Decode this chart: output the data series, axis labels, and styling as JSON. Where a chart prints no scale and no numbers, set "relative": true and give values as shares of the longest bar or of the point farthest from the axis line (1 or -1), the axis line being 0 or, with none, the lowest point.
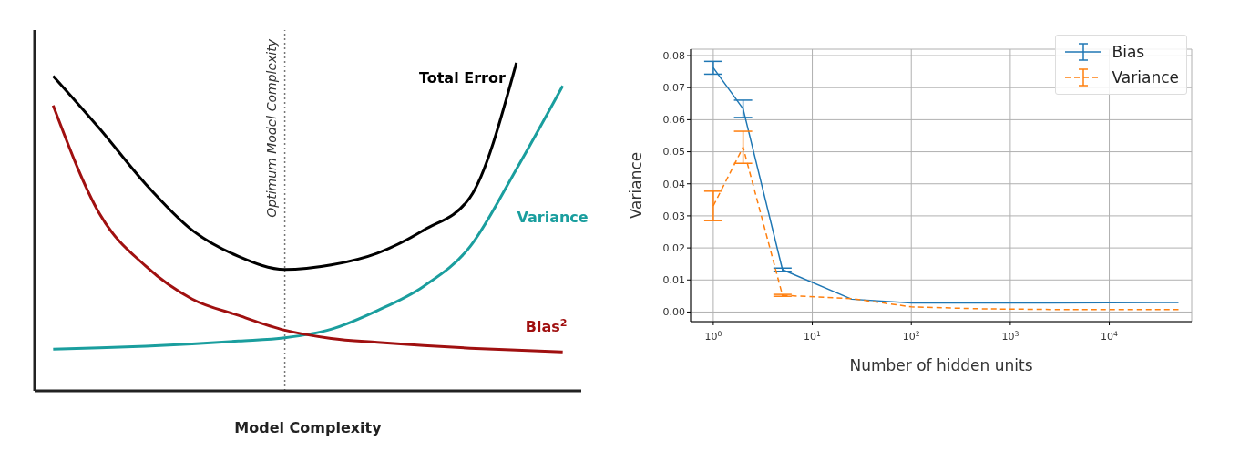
{
  "chart_data": [
    {
      "type": "line",
      "relative": true,
      "xlabel": "Model Complexity",
      "categories": [
        null,
        null,
        null,
        null,
        null,
        null,
        null,
        null,
        null,
        null,
        null,
        null
      ],
      "marker": "none",
      "series": [
        {
          "name": "Total Error",
          "color": "#000000",
          "values": [
            0.96,
            0.8,
            0.63,
            0.49,
            0.41,
            0.37,
            0.384,
            0.42,
            0.49,
            0.59,
            1.0,
            null
          ]
        },
        {
          "name": "Variance",
          "color": "#1a9e9e",
          "values": [
            0.127,
            0.131,
            0.136,
            0.143,
            0.152,
            0.162,
            0.188,
            0.245,
            0.319,
            0.44,
            0.676,
            0.93
          ]
        },
        {
          "name": "Bias$^{2}$",
          "color": "#a01010",
          "values": [
            0.87,
            0.54,
            0.38,
            0.28,
            0.23,
            0.185,
            0.16,
            0.148,
            0.138,
            0.13,
            0.124,
            0.119
          ]
        }
      ],
      "annotations": [
        "Optimum Model Complexity"
      ]
    },
    {
      "type": "line",
      "xlabel": "Number of hidden units",
      "ylabel": "Variance",
      "log": "x",
      "xlim": [
        0.59,
        68000
      ],
      "xticks": [
        {
          "value": 1,
          "label": "10$^{0}$"
        },
        {
          "value": 10,
          "label": "10$^{1}$"
        },
        {
          "value": 100,
          "label": "10$^{2}$"
        },
        {
          "value": 1000,
          "label": "10$^{3}$"
        },
        {
          "value": 10000,
          "label": "10$^{4}$"
        }
      ],
      "ylim": [
        -0.003,
        0.082
      ],
      "yticks": [
        {
          "value": 0,
          "label": "0.00"
        },
        {
          "value": 0.01,
          "label": "0.01"
        },
        {
          "value": 0.02,
          "label": "0.02"
        },
        {
          "value": 0.03,
          "label": "0.03"
        },
        {
          "value": 0.04,
          "label": "0.04"
        },
        {
          "value": 0.05,
          "label": "0.05"
        },
        {
          "value": 0.06,
          "label": "0.06"
        },
        {
          "value": 0.07,
          "label": "0.07"
        },
        {
          "value": 0.08,
          "label": "0.08"
        }
      ],
      "grid": true,
      "legend": "top right",
      "marker": "none",
      "series": [
        {
          "name": "Bias",
          "color": "#1f77b4",
          "line_style": "solid",
          "x": [
            1,
            2,
            5,
            25,
            100,
            500,
            2500,
            10000,
            50000
          ],
          "values": [
            0.0762,
            0.0634,
            0.0132,
            0.004,
            0.0028,
            0.0028,
            0.0028,
            0.0029,
            0.003
          ],
          "errors": [
            0.002,
            0.0027,
            0.0005,
            null,
            null,
            null,
            null,
            null,
            null
          ]
        },
        {
          "name": "Variance",
          "color": "#ff7f0e",
          "line_style": "dashed",
          "x": [
            1,
            2,
            5,
            25,
            100,
            500,
            2500,
            10000,
            50000
          ],
          "values": [
            0.0331,
            0.0514,
            0.0052,
            0.0042,
            0.0016,
            0.001,
            0.0008,
            0.0008,
            0.0008
          ],
          "errors": [
            0.0046,
            0.005,
            0.0003,
            null,
            null,
            null,
            null,
            null,
            null
          ]
        }
      ]
    }
  ]
}
